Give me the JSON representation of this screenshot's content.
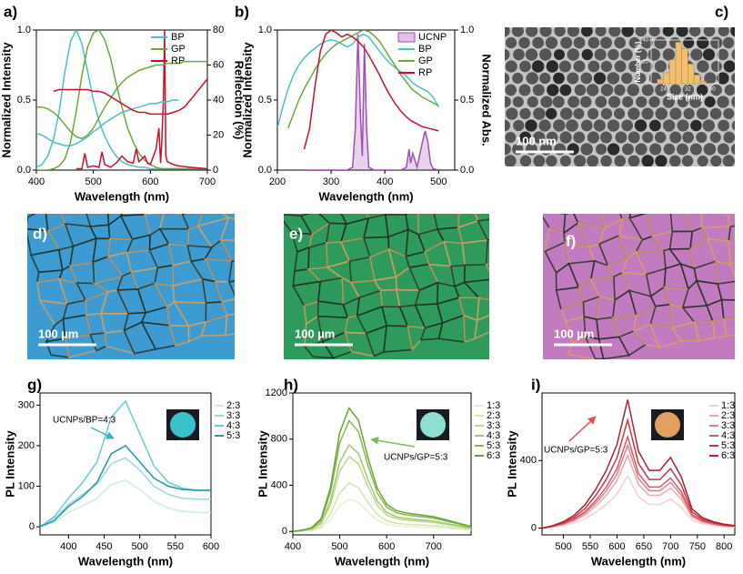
{
  "chart_data": [
    {
      "type": "line",
      "label": "a)",
      "xlabel": "Wavelength (nm)",
      "ylabel": "Normalized Intensity",
      "y2label": "Reflection (%)",
      "x": [
        400,
        410,
        420,
        430,
        440,
        450,
        460,
        470,
        480,
        490,
        500,
        510,
        520,
        530,
        540,
        550,
        560,
        570,
        580,
        590,
        600,
        610,
        620,
        630,
        640,
        650,
        660,
        670,
        680,
        690,
        700
      ],
      "xlim": [
        400,
        700
      ],
      "xticks": [
        400,
        500,
        600,
        700
      ],
      "ylim": [
        0,
        1
      ],
      "yticks": [
        {
          "value": 0,
          "label": "0.0"
        },
        {
          "value": 0.5,
          "label": "0.5"
        },
        {
          "value": 1,
          "label": "1.0"
        }
      ],
      "y2lim": [
        0,
        80
      ],
      "y2ticks": [
        0,
        20,
        40,
        60,
        80
      ],
      "legend": "upper right",
      "series": [
        {
          "name": "BP",
          "color": "#4dbfc6",
          "values": [
            0.02,
            0.04,
            0.1,
            0.22,
            0.42,
            0.7,
            0.92,
            1.0,
            0.9,
            0.7,
            0.5,
            0.35,
            0.24,
            0.16,
            0.1,
            0.06,
            0.04,
            0.03,
            0.02,
            0.02,
            0.01,
            0.01,
            0.01,
            0.01,
            0.01,
            0.01,
            0.01,
            0.01,
            0.01,
            0.01,
            0.01
          ]
        },
        {
          "name": "GP",
          "color": "#6aa83c",
          "values": [
            0,
            0,
            0,
            0.01,
            0.03,
            0.08,
            0.2,
            0.42,
            0.68,
            0.88,
            0.98,
            1.0,
            0.93,
            0.8,
            0.62,
            0.45,
            0.3,
            0.2,
            0.12,
            0.07,
            0.04,
            0.02,
            0.01,
            0.01,
            0.01,
            0.01,
            0.01,
            0.01,
            0.01,
            0.01,
            0.01
          ]
        },
        {
          "name": "RP",
          "color": "#c8102e",
          "x": [
            470,
            480,
            485,
            490,
            500,
            510,
            515,
            520,
            530,
            540,
            550,
            560,
            570,
            575,
            580,
            590,
            595,
            600,
            610,
            615,
            618,
            620,
            623,
            625,
            627,
            630,
            640,
            650,
            670,
            700
          ],
          "values": [
            0.01,
            0.01,
            0.12,
            0.02,
            0.03,
            0.02,
            0.13,
            0.04,
            0.02,
            0.05,
            0.1,
            0.06,
            0.05,
            0.15,
            0.06,
            0.1,
            0.05,
            0.04,
            0.15,
            0.3,
            0.05,
            0.2,
            0.5,
            1.0,
            0.1,
            0.06,
            0.04,
            0.03,
            0.02,
            0.01
          ]
        },
        {
          "color": "#4dbfc6",
          "axis": "y2",
          "values": [
            21,
            20,
            18,
            16,
            15,
            14,
            14,
            15,
            17,
            19,
            22,
            24,
            27,
            29,
            31,
            33,
            34,
            35,
            36,
            37,
            38,
            38,
            39,
            39,
            40,
            40,
            null,
            null,
            null,
            null,
            null
          ]
        },
        {
          "color": "#6aa83c",
          "axis": "y2",
          "values": [
            36,
            36,
            35,
            33,
            30,
            26,
            22,
            19,
            18,
            20,
            24,
            30,
            36,
            41,
            46,
            50,
            53,
            55,
            57,
            58,
            59,
            60,
            60,
            61,
            61,
            61,
            62,
            62,
            62,
            62,
            62
          ]
        },
        {
          "color": "#c8102e",
          "axis": "y2",
          "values": [
            null,
            null,
            null,
            45,
            46,
            46,
            46,
            46,
            46,
            46,
            45,
            45,
            44,
            42,
            40,
            38,
            36,
            34,
            33,
            33,
            32,
            32,
            32,
            32,
            33,
            34,
            36,
            40,
            44,
            48,
            52
          ]
        }
      ]
    },
    {
      "type": "line",
      "label": "b)",
      "xlabel": "Wavelength (nm)",
      "ylabel": "Normalized Intensity",
      "y2label": "Normalized Abs.",
      "x": [
        200,
        210,
        220,
        230,
        240,
        250,
        260,
        270,
        280,
        290,
        300,
        310,
        320,
        330,
        340,
        350,
        360,
        370,
        380,
        390,
        400,
        410,
        420,
        430,
        440,
        450,
        460,
        470,
        480,
        490,
        500
      ],
      "xlim": [
        200,
        530
      ],
      "xticks": [
        200,
        300,
        400,
        500
      ],
      "ylim": [
        0,
        1
      ],
      "yticks": [
        {
          "value": 0,
          "label": "0.0"
        },
        {
          "value": 0.5,
          "label": "0.5"
        },
        {
          "value": 1,
          "label": "1.0"
        }
      ],
      "y2lim": [
        0,
        1
      ],
      "y2ticks": [
        {
          "value": 0,
          "label": "0.0"
        },
        {
          "value": 0.5,
          "label": "0.5"
        },
        {
          "value": 1,
          "label": "1.0"
        }
      ],
      "legend": "upper right",
      "series": [
        {
          "name": "UCNP",
          "color": "#a050b0",
          "area": true,
          "x": [
            250,
            300,
            330,
            340,
            345,
            350,
            355,
            358,
            362,
            366,
            370,
            380,
            400,
            430,
            440,
            445,
            448,
            452,
            460,
            470,
            475,
            480,
            485,
            490,
            500
          ],
          "values": [
            0,
            0,
            0,
            0.02,
            0.3,
            0.97,
            0.35,
            0.1,
            0.9,
            0.3,
            0.02,
            0,
            0,
            0,
            0.02,
            0.15,
            0.05,
            0.12,
            0.02,
            0.2,
            0.28,
            0.2,
            0.05,
            0.01,
            0
          ]
        },
        {
          "name": "BP",
          "color": "#4dbfc6",
          "axis": "y2",
          "values": [
            0.3,
            0.45,
            0.58,
            0.68,
            0.75,
            0.8,
            0.84,
            0.87,
            0.9,
            0.92,
            0.93,
            0.92,
            0.9,
            0.88,
            0.9,
            0.95,
            0.97,
            0.95,
            0.9,
            0.85,
            0.8,
            0.76,
            0.73,
            0.7,
            0.67,
            0.63,
            0.6,
            0.58,
            0.56,
            0.52,
            0.45
          ]
        },
        {
          "name": "GP",
          "color": "#6aa83c",
          "axis": "y2",
          "values": [
            null,
            null,
            0.3,
            0.4,
            0.5,
            0.58,
            0.65,
            0.72,
            0.78,
            0.83,
            0.87,
            0.9,
            0.92,
            0.94,
            0.96,
            0.98,
            1.0,
            0.99,
            0.96,
            0.92,
            0.86,
            0.8,
            0.74,
            0.68,
            0.63,
            0.58,
            0.55,
            0.52,
            0.5,
            0.48,
            0.46
          ]
        },
        {
          "name": "RP",
          "color": "#c8102e",
          "axis": "y2",
          "values": [
            null,
            null,
            null,
            null,
            null,
            0.15,
            0.3,
            0.6,
            0.85,
            0.97,
            1.0,
            0.98,
            0.95,
            0.97,
            0.95,
            0.92,
            0.88,
            0.82,
            0.75,
            0.68,
            0.6,
            0.53,
            0.47,
            0.42,
            0.38,
            0.35,
            0.33,
            0.31,
            0.3,
            0.29,
            0.28
          ]
        }
      ]
    },
    {
      "type": "image",
      "label": "c)",
      "scale_bar": "100 nm",
      "color": "#c4c4c4",
      "inset": {
        "type": "histogram",
        "xlabel": "Size (nm)",
        "ylabel": "Number (%)",
        "color": "#f0c070",
        "bins": [
          22,
          24,
          26,
          28,
          30,
          32,
          34,
          36,
          38
        ],
        "values": [
          4,
          10,
          22,
          38,
          32,
          18,
          8,
          2
        ],
        "xlim": [
          20,
          42
        ],
        "xticks": [
          24,
          32,
          40
        ],
        "ylim": [
          0,
          40
        ],
        "yticks": [
          0,
          20,
          40
        ]
      }
    },
    {
      "type": "image",
      "label": "d)",
      "scale_bar": "100 µm",
      "color": "#3d9bd1"
    },
    {
      "type": "image",
      "label": "e)",
      "scale_bar": "100 µm",
      "color": "#2e9a5c"
    },
    {
      "type": "image",
      "label": "f)",
      "scale_bar": "100 µm",
      "color": "#c27bbf"
    },
    {
      "type": "line",
      "label": "g)",
      "xlabel": "Wavelength (nm)",
      "ylabel": "PL Intensity",
      "annotation": "UCNPs/BP=4:3",
      "x": [
        360,
        380,
        400,
        420,
        440,
        460,
        480,
        500,
        520,
        540,
        560,
        580,
        600
      ],
      "xlim": [
        360,
        600
      ],
      "xticks": [
        400,
        450,
        500,
        550,
        600
      ],
      "ylim": [
        -20,
        330
      ],
      "yticks": [
        0,
        100,
        200,
        300
      ],
      "legend": "right",
      "series": [
        {
          "name": "2:3",
          "color": "#cdeaea",
          "values": [
            0,
            10,
            35,
            52,
            70,
            104,
            115,
            92,
            63,
            46,
            38,
            35,
            35
          ]
        },
        {
          "name": "3:3",
          "color": "#9fd8da",
          "values": [
            0,
            20,
            55,
            80,
            105,
            155,
            170,
            140,
            100,
            80,
            70,
            68,
            68
          ]
        },
        {
          "name": "4:3",
          "color": "#6ccbd0",
          "values": [
            0,
            25,
            70,
            110,
            160,
            270,
            310,
            230,
            150,
            110,
            95,
            90,
            90
          ]
        },
        {
          "name": "5:3",
          "color": "#1c9aa5",
          "values": [
            0,
            15,
            50,
            75,
            110,
            180,
            200,
            160,
            120,
            100,
            92,
            90,
            90
          ]
        }
      ]
    },
    {
      "type": "line",
      "label": "h)",
      "xlabel": "Wavelength (nm)",
      "ylabel": "PL Intensity",
      "annotation": "UCNPs/GP=5:3",
      "x": [
        400,
        420,
        440,
        460,
        480,
        500,
        520,
        540,
        560,
        580,
        600,
        620,
        640,
        660,
        680,
        700,
        720,
        740,
        760,
        780
      ],
      "xlim": [
        400,
        780
      ],
      "xticks": [
        400,
        500,
        600,
        700
      ],
      "ylim": [
        -30,
        1200
      ],
      "yticks": [
        0,
        400,
        800,
        1200
      ],
      "legend": "right",
      "series": [
        {
          "name": "1:3",
          "color": "#e6f0cf",
          "values": [
            0,
            3,
            8,
            28,
            98,
            224,
            280,
            252,
            168,
            98,
            62,
            48,
            42,
            39,
            36,
            34,
            28,
            22,
            17,
            11
          ]
        },
        {
          "name": "2:3",
          "color": "#d2e6aa",
          "values": [
            0,
            4,
            13,
            42,
            147,
            336,
            420,
            378,
            252,
            147,
            92,
            71,
            63,
            59,
            55,
            50,
            42,
            34,
            25,
            17
          ]
        },
        {
          "name": "3:3",
          "color": "#bcd98a",
          "values": [
            0,
            7,
            20,
            65,
            228,
            520,
            650,
            585,
            390,
            228,
            143,
            111,
            98,
            91,
            85,
            78,
            65,
            52,
            39,
            26
          ]
        },
        {
          "name": "4:3",
          "color": "#a2c96a",
          "values": [
            0,
            8,
            23,
            75,
            263,
            600,
            750,
            675,
            450,
            263,
            165,
            128,
            113,
            105,
            98,
            90,
            75,
            60,
            45,
            30
          ]
        },
        {
          "name": "5:3",
          "color": "#86b64c",
          "values": [
            0,
            10,
            29,
            96,
            336,
            768,
            960,
            864,
            576,
            336,
            211,
            163,
            144,
            134,
            125,
            115,
            96,
            77,
            58,
            38
          ]
        },
        {
          "name": "6:3",
          "color": "#6aa33a",
          "values": [
            0,
            11,
            32,
            107,
            375,
            856,
            1070,
            963,
            642,
            375,
            235,
            182,
            161,
            150,
            139,
            128,
            107,
            86,
            64,
            43
          ]
        }
      ]
    },
    {
      "type": "line",
      "label": "i)",
      "xlabel": "Wavelength (nm)",
      "ylabel": "PL Intensity",
      "annotation": "UCNPs/GP=5:3",
      "x": [
        460,
        480,
        500,
        520,
        540,
        560,
        580,
        600,
        620,
        640,
        660,
        680,
        700,
        720,
        740,
        760,
        780,
        800,
        820
      ],
      "xlim": [
        460,
        820
      ],
      "xticks": [
        500,
        550,
        600,
        650,
        700,
        750,
        800
      ],
      "ylim": [
        -40,
        800
      ],
      "yticks": [
        0,
        400
      ],
      "legend": "right",
      "series": [
        {
          "name": "1:3",
          "color": "#f4cfd2",
          "values": [
            0,
            6,
            16,
            31,
            56,
            93,
            140,
            202,
            310,
            186,
            140,
            140,
            171,
            124,
            47,
            25,
            16,
            9,
            6
          ]
        },
        {
          "name": "2:3",
          "color": "#eba9b0",
          "values": [
            0,
            9,
            22,
            43,
            77,
            129,
            194,
            280,
            430,
            258,
            194,
            194,
            237,
            172,
            65,
            34,
            22,
            13,
            9
          ]
        },
        {
          "name": "3:3",
          "color": "#e0808b",
          "values": [
            0,
            10,
            25,
            49,
            88,
            147,
            221,
            319,
            490,
            294,
            221,
            221,
            270,
            196,
            74,
            39,
            25,
            15,
            10
          ]
        },
        {
          "name": "4:3",
          "color": "#d45a69",
          "values": [
            0,
            11,
            27,
            54,
            97,
            162,
            243,
            351,
            540,
            324,
            243,
            243,
            297,
            216,
            81,
            43,
            27,
            16,
            11
          ]
        },
        {
          "name": "5:3",
          "color": "#c53647",
          "values": [
            0,
            13,
            32,
            64,
            115,
            192,
            288,
            416,
            640,
            384,
            288,
            288,
            352,
            256,
            96,
            51,
            32,
            19,
            13
          ]
        },
        {
          "name": "6:3",
          "color": "#b21f32",
          "values": [
            0,
            15,
            38,
            76,
            137,
            228,
            342,
            494,
            760,
            456,
            342,
            342,
            418,
            304,
            114,
            61,
            38,
            23,
            15
          ]
        }
      ]
    }
  ]
}
